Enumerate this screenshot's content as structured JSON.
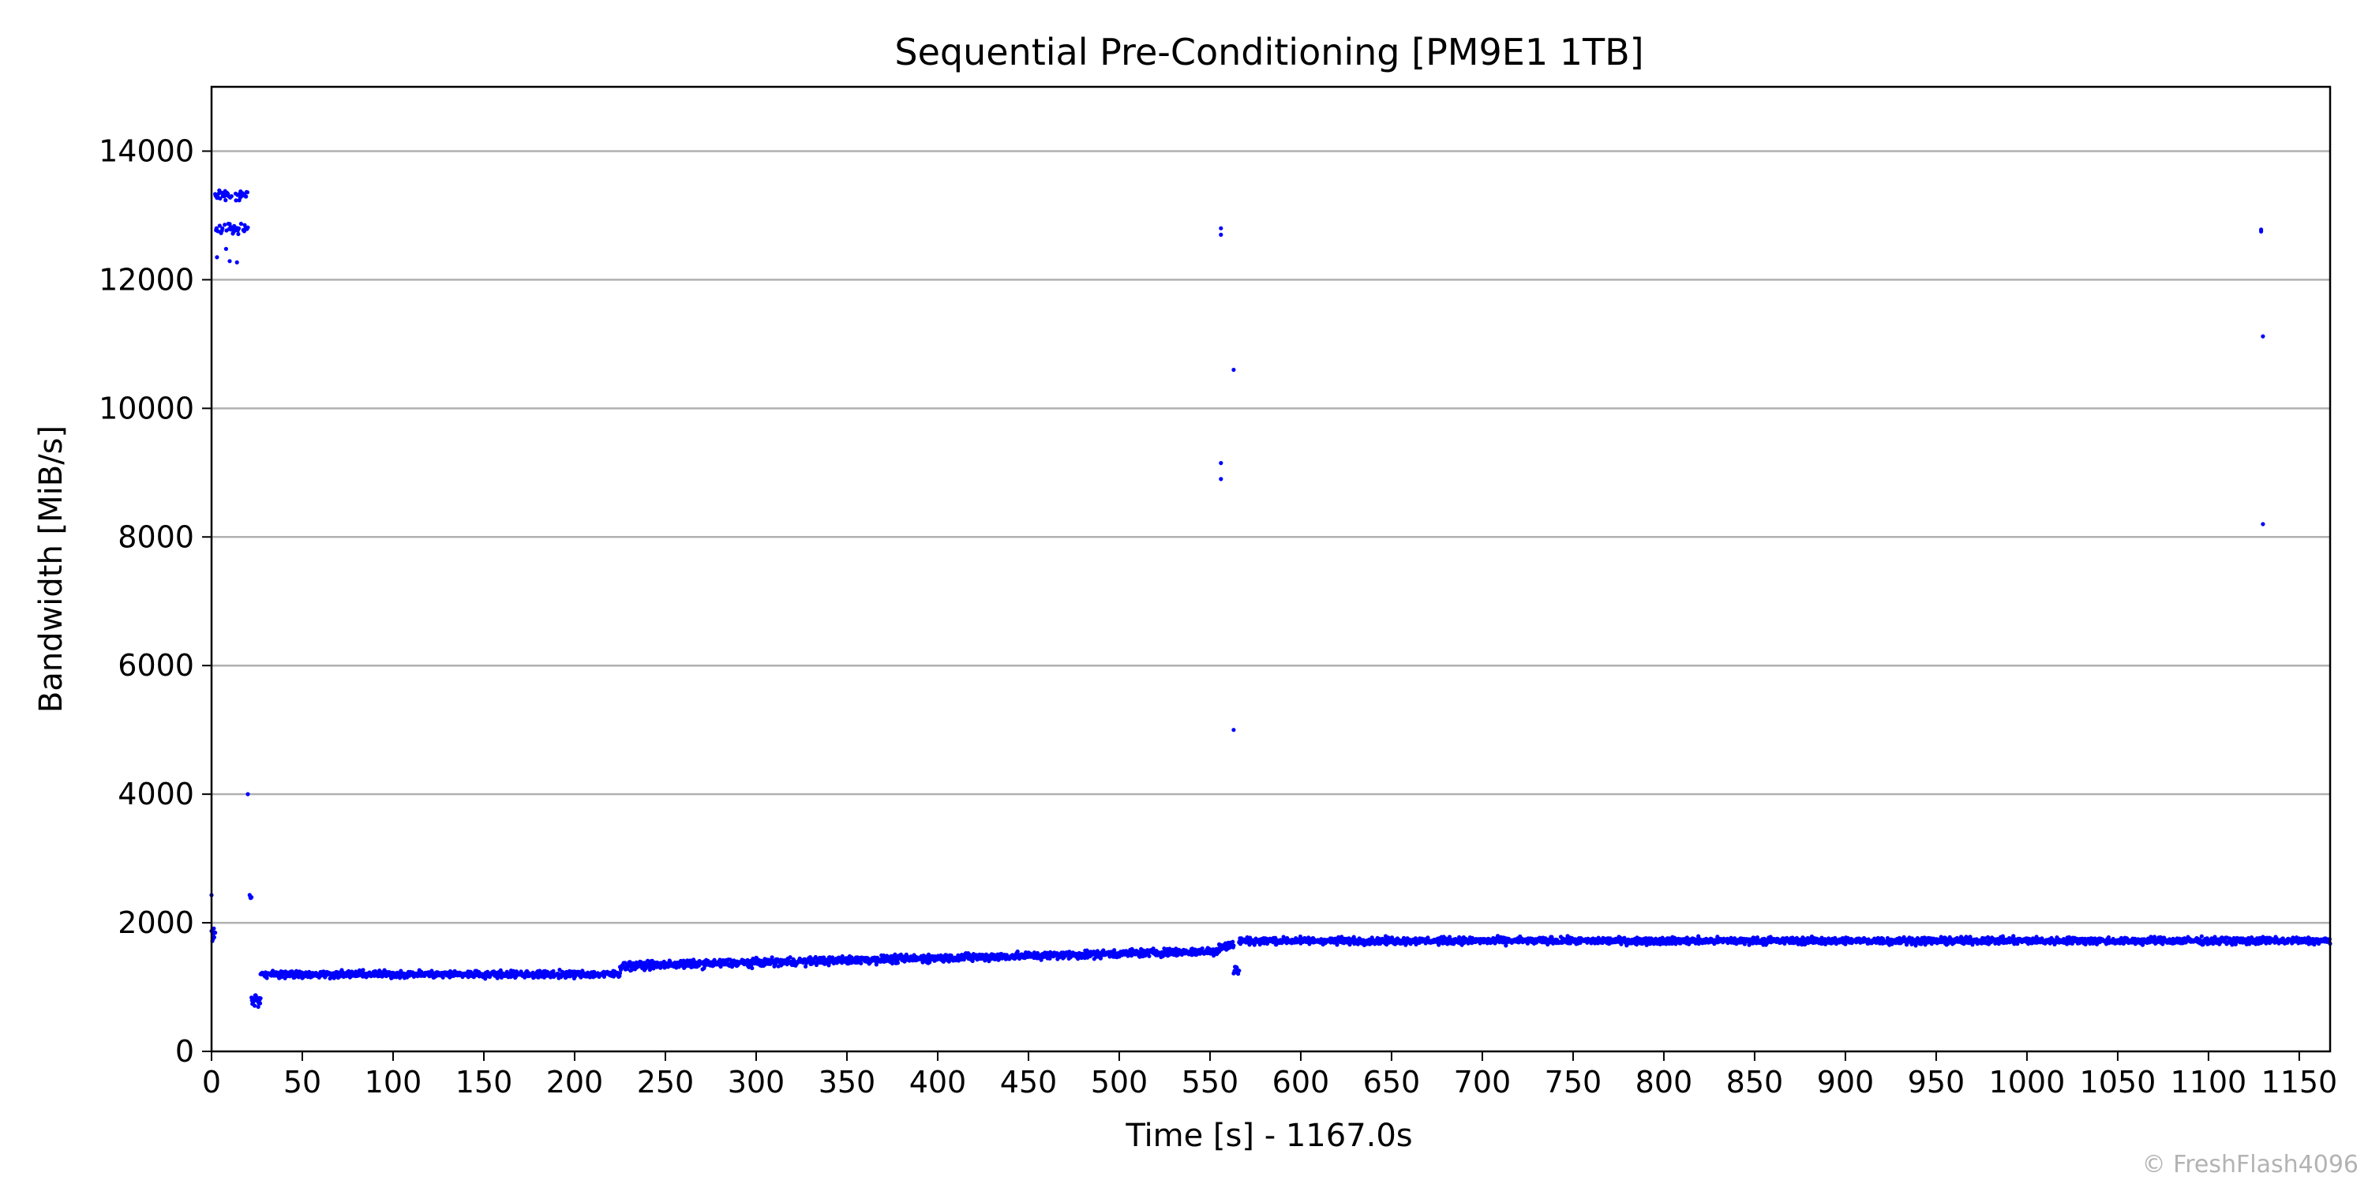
{
  "chart_data": {
    "type": "scatter",
    "title": "Sequential Pre-Conditioning [PM9E1 1TB]",
    "xlabel": "Time [s] - 1167.0s",
    "ylabel": "Bandwidth [MiB/s]",
    "xlim": [
      0,
      1167
    ],
    "ylim": [
      0,
      15000
    ],
    "x_ticks": [
      0,
      50,
      100,
      150,
      200,
      250,
      300,
      350,
      400,
      450,
      500,
      550,
      600,
      650,
      700,
      750,
      800,
      850,
      900,
      950,
      1000,
      1050,
      1100,
      1150
    ],
    "y_ticks": [
      0,
      2000,
      4000,
      6000,
      8000,
      10000,
      12000,
      14000
    ],
    "grid": "horizontal",
    "marker_color": "#0000ff",
    "series": [
      {
        "sampling": "1 point per second",
        "segments": [
          {
            "x_start": 0,
            "x_end": 2,
            "mean": 1800,
            "spread": 200
          },
          {
            "x_start": 2,
            "x_end": 20,
            "levels": [
              12800,
              13320
            ],
            "spread": 120
          },
          {
            "x_start": 21,
            "x_end": 22,
            "mean": 2400,
            "spread": 60
          },
          {
            "x_start": 22,
            "x_end": 27,
            "mean": 800,
            "spread": 120
          },
          {
            "x_start": 27,
            "x_end": 225,
            "mean": 1200,
            "spread": 80
          },
          {
            "x_start": 225,
            "x_end": 555,
            "mean_start": 1330,
            "mean_end": 1560,
            "spread": 90
          },
          {
            "x_start": 555,
            "x_end": 563,
            "mean": 1650,
            "spread": 120
          },
          {
            "x_start": 563,
            "x_end": 566,
            "mean": 1250,
            "spread": 120
          },
          {
            "x_start": 566,
            "x_end": 1167,
            "mean": 1720,
            "spread": 80
          }
        ],
        "outliers": [
          {
            "x": 0,
            "y": 2430
          },
          {
            "x": 3,
            "y": 12350
          },
          {
            "x": 8,
            "y": 12480
          },
          {
            "x": 10,
            "y": 12290
          },
          {
            "x": 14,
            "y": 12270
          },
          {
            "x": 20,
            "y": 4000
          },
          {
            "x": 556,
            "y": 12800
          },
          {
            "x": 556,
            "y": 12700
          },
          {
            "x": 556,
            "y": 9150
          },
          {
            "x": 556,
            "y": 8900
          },
          {
            "x": 563,
            "y": 10600
          },
          {
            "x": 563,
            "y": 5000
          },
          {
            "x": 1129,
            "y": 12780
          },
          {
            "x": 1129,
            "y": 12750
          },
          {
            "x": 1130,
            "y": 11120
          },
          {
            "x": 1130,
            "y": 8200
          }
        ]
      }
    ]
  },
  "credit": "© FreshFlash4096"
}
